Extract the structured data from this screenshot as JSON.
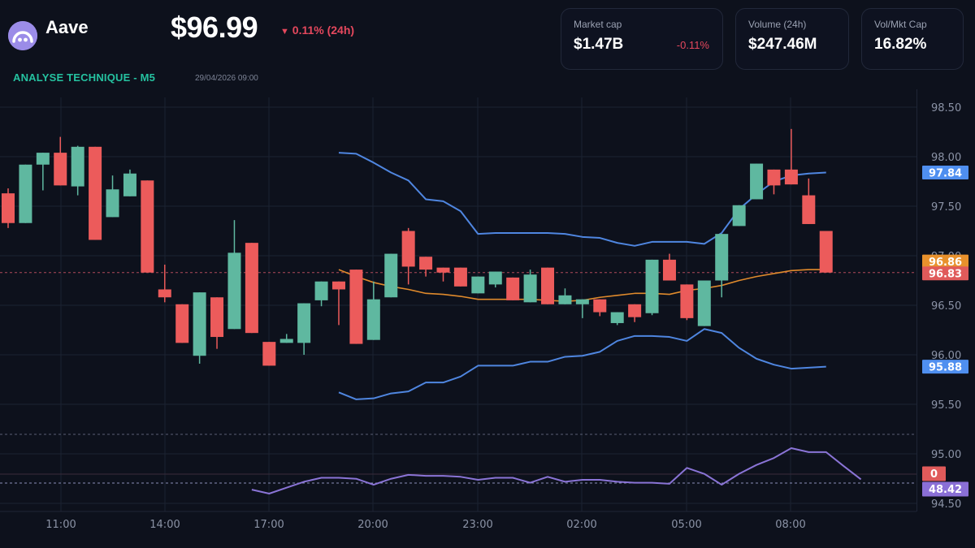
{
  "header": {
    "coin_name": "Aave",
    "logo_icon": "aave-ghost-icon",
    "price": "$96.99",
    "change_arrow": "▼",
    "change_text": "0.11% (24h)",
    "section_title": "ANALYSE TECHNIQUE - M5",
    "timestamp": "29/04/2026 09:00"
  },
  "stats": [
    {
      "label": "Market cap",
      "value": "$1.47B",
      "delta": "-0.11%"
    },
    {
      "label": "Volume (24h)",
      "value": "$247.46M",
      "delta": ""
    },
    {
      "label": "Vol/Mkt Cap",
      "value": "16.82%",
      "delta": ""
    }
  ],
  "colors": {
    "background": "#0d111c",
    "up": "#5fb8a0",
    "down": "#ec5b5b",
    "bollinger": "#4f86e0",
    "sma": "#e08a2c",
    "rsi": "#8a74d6",
    "accent": "#25c2a0",
    "negative": "#e5485d",
    "grid": "#1c2232"
  },
  "price_tags": [
    {
      "label": "97.84",
      "price": 97.84,
      "color": "#4f8ff0",
      "name": "bollinger-upper-tag"
    },
    {
      "label": "96.86",
      "price": 96.86,
      "color": "#e8912c",
      "name": "sma-tag"
    },
    {
      "label": "96.83",
      "price": 96.83,
      "color": "#e05a5a",
      "name": "last-price-tag"
    },
    {
      "label": "95.88",
      "price": 95.88,
      "color": "#4f8ff0",
      "name": "bollinger-lower-tag"
    }
  ],
  "rsi_tags": [
    {
      "label": "0",
      "color": "#e05a5a",
      "name": "rsi-zero-tag"
    },
    {
      "label": "48.42",
      "color": "#8a6fd6",
      "name": "rsi-value-tag"
    }
  ],
  "chart_data": {
    "type": "candlestick",
    "title": "ANALYSE TECHNIQUE - M5",
    "symbol": "Aave",
    "xlabel": "",
    "ylabel": "",
    "ylim": [
      94.5,
      98.5
    ],
    "y_ticks": [
      "98.50",
      "98.00",
      "97.50",
      "97.00",
      "96.50",
      "96.00",
      "95.50",
      "95.00",
      "94.50"
    ],
    "y_tick_values": [
      98.5,
      98.0,
      97.5,
      97.0,
      96.5,
      96.0,
      95.5,
      95.0,
      94.5
    ],
    "x_ticks": [
      "11:00",
      "14:00",
      "17:00",
      "20:00",
      "23:00",
      "02:00",
      "05:00",
      "08:00"
    ],
    "grid": true,
    "last_price": 96.83,
    "candles": [
      {
        "o": 97.63,
        "h": 97.68,
        "l": 97.28,
        "c": 97.33
      },
      {
        "o": 97.33,
        "h": 97.33,
        "l": 97.33,
        "c": 97.92
      },
      {
        "o": 97.92,
        "h": 98.04,
        "l": 97.66,
        "c": 98.04
      },
      {
        "o": 98.04,
        "h": 98.2,
        "l": 97.71,
        "c": 97.71
      },
      {
        "o": 97.7,
        "h": 98.11,
        "l": 97.61,
        "c": 98.1
      },
      {
        "o": 98.1,
        "h": 98.1,
        "l": 97.16,
        "c": 97.16
      },
      {
        "o": 97.39,
        "h": 97.81,
        "l": 97.39,
        "c": 97.67
      },
      {
        "o": 97.6,
        "h": 97.87,
        "l": 97.6,
        "c": 97.83
      },
      {
        "o": 97.76,
        "h": 97.76,
        "l": 96.83,
        "c": 96.83
      },
      {
        "o": 96.66,
        "h": 96.91,
        "l": 96.53,
        "c": 96.58
      },
      {
        "o": 96.51,
        "h": 96.51,
        "l": 96.12,
        "c": 96.12
      },
      {
        "o": 95.99,
        "h": 96.63,
        "l": 95.91,
        "c": 96.63
      },
      {
        "o": 96.58,
        "h": 96.58,
        "l": 96.06,
        "c": 96.18
      },
      {
        "o": 96.26,
        "h": 97.36,
        "l": 96.26,
        "c": 97.03
      },
      {
        "o": 97.13,
        "h": 97.13,
        "l": 96.22,
        "c": 96.22
      },
      {
        "o": 96.13,
        "h": 96.13,
        "l": 95.89,
        "c": 95.89
      },
      {
        "o": 96.12,
        "h": 96.21,
        "l": 96.12,
        "c": 96.16
      },
      {
        "o": 96.12,
        "h": 96.52,
        "l": 96.0,
        "c": 96.52
      },
      {
        "o": 96.55,
        "h": 96.74,
        "l": 96.49,
        "c": 96.74
      },
      {
        "o": 96.74,
        "h": 96.74,
        "l": 96.3,
        "c": 96.66
      },
      {
        "o": 96.86,
        "h": 96.86,
        "l": 96.11,
        "c": 96.11
      },
      {
        "o": 96.15,
        "h": 96.74,
        "l": 96.15,
        "c": 96.56
      },
      {
        "o": 96.58,
        "h": 97.02,
        "l": 96.58,
        "c": 97.02
      },
      {
        "o": 97.25,
        "h": 97.28,
        "l": 96.71,
        "c": 96.89
      },
      {
        "o": 96.99,
        "h": 96.99,
        "l": 96.79,
        "c": 96.86
      },
      {
        "o": 96.88,
        "h": 96.88,
        "l": 96.74,
        "c": 96.83
      },
      {
        "o": 96.88,
        "h": 96.88,
        "l": 96.69,
        "c": 96.69
      },
      {
        "o": 96.62,
        "h": 96.79,
        "l": 96.62,
        "c": 96.79
      },
      {
        "o": 96.71,
        "h": 96.84,
        "l": 96.68,
        "c": 96.84
      },
      {
        "o": 96.78,
        "h": 96.78,
        "l": 96.55,
        "c": 96.55
      },
      {
        "o": 96.53,
        "h": 96.86,
        "l": 96.53,
        "c": 96.81
      },
      {
        "o": 96.88,
        "h": 96.88,
        "l": 96.51,
        "c": 96.51
      },
      {
        "o": 96.51,
        "h": 96.67,
        "l": 96.51,
        "c": 96.6
      },
      {
        "o": 96.51,
        "h": 96.56,
        "l": 96.37,
        "c": 96.56
      },
      {
        "o": 96.56,
        "h": 96.56,
        "l": 96.39,
        "c": 96.43
      },
      {
        "o": 96.32,
        "h": 96.43,
        "l": 96.3,
        "c": 96.43
      },
      {
        "o": 96.51,
        "h": 96.51,
        "l": 96.33,
        "c": 96.38
      },
      {
        "o": 96.42,
        "h": 96.96,
        "l": 96.4,
        "c": 96.96
      },
      {
        "o": 96.96,
        "h": 97.02,
        "l": 96.75,
        "c": 96.75
      },
      {
        "o": 96.71,
        "h": 96.71,
        "l": 96.35,
        "c": 96.37
      },
      {
        "o": 96.29,
        "h": 96.75,
        "l": 96.29,
        "c": 96.75
      },
      {
        "o": 96.75,
        "h": 97.15,
        "l": 96.58,
        "c": 97.22
      },
      {
        "o": 97.3,
        "h": 97.51,
        "l": 97.3,
        "c": 97.51
      },
      {
        "o": 97.57,
        "h": 97.93,
        "l": 97.57,
        "c": 97.93
      },
      {
        "o": 97.87,
        "h": 97.87,
        "l": 97.62,
        "c": 97.71
      },
      {
        "o": 97.87,
        "h": 98.28,
        "l": 97.72,
        "c": 97.72
      },
      {
        "o": 97.61,
        "h": 97.78,
        "l": 97.32,
        "c": 97.32
      },
      {
        "o": 97.25,
        "h": 97.25,
        "l": 96.83,
        "c": 96.83
      }
    ],
    "series": [
      {
        "name": "Bollinger Upper",
        "start_index": 19,
        "values": [
          98.04,
          98.03,
          97.94,
          97.84,
          97.76,
          97.57,
          97.55,
          97.45,
          97.22,
          97.23,
          97.23,
          97.23,
          97.23,
          97.22,
          97.19,
          97.18,
          97.13,
          97.1,
          97.14,
          97.14,
          97.14,
          97.12,
          97.23,
          97.47,
          97.62,
          97.75,
          97.81,
          97.83,
          97.84
        ]
      },
      {
        "name": "SMA",
        "start_index": 19,
        "values": [
          96.86,
          96.79,
          96.73,
          96.69,
          96.66,
          96.62,
          96.61,
          96.59,
          96.56,
          96.56,
          96.56,
          96.56,
          96.55,
          96.54,
          96.55,
          96.58,
          96.6,
          96.62,
          96.62,
          96.61,
          96.65,
          96.67,
          96.7,
          96.75,
          96.79,
          96.82,
          96.85,
          96.86,
          96.86
        ]
      },
      {
        "name": "Bollinger Lower",
        "start_index": 19,
        "values": [
          95.62,
          95.55,
          95.56,
          95.61,
          95.63,
          95.72,
          95.72,
          95.78,
          95.89,
          95.89,
          95.89,
          95.93,
          95.93,
          95.98,
          95.99,
          96.03,
          96.14,
          96.19,
          96.19,
          96.18,
          96.14,
          96.26,
          96.22,
          96.07,
          95.96,
          95.9,
          95.86,
          95.87,
          95.88
        ]
      },
      {
        "name": "RSI",
        "start_index": 14,
        "pane_ylim": [
          0,
          100
        ],
        "values": [
          38,
          34,
          40,
          46,
          50,
          50,
          49,
          43,
          49,
          53,
          52,
          52,
          51,
          48,
          50,
          50,
          45,
          51,
          46,
          48,
          48,
          46,
          45,
          45,
          44,
          60,
          54,
          43,
          54,
          63,
          70,
          80,
          76,
          76,
          62,
          48.42
        ]
      }
    ],
    "annotations": [
      "97.84",
      "96.86",
      "96.83",
      "95.88",
      "0",
      "48.42"
    ]
  }
}
